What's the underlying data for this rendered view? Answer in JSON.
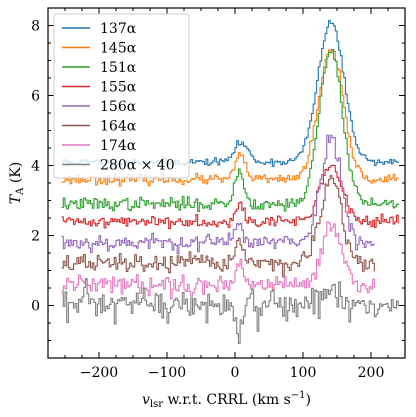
{
  "chart_data": {
    "type": "line",
    "title": "",
    "xlabel": "v_lsr w.r.t. CRRL (km s^-1)",
    "xlabel_parts": {
      "base": "v",
      "sub": "lsr",
      "rest": " w.r.t. CRRL (km s",
      "sup": "−1",
      "close": ")"
    },
    "ylabel": "T_A (K)",
    "ylabel_parts": {
      "base": "T",
      "sub": "A",
      "rest": " (K)"
    },
    "xlim": [
      -275,
      250
    ],
    "ylim": [
      -1.5,
      8.5
    ],
    "x_ticks": [
      -200,
      -100,
      0,
      100,
      200
    ],
    "x_tick_labels": [
      "−200",
      "−100",
      "0",
      "100",
      "200"
    ],
    "y_ticks": [
      0,
      2,
      4,
      6,
      8
    ],
    "y_tick_labels": [
      "0",
      "2",
      "4",
      "6",
      "8"
    ],
    "grid": false,
    "legend_position": "top-left",
    "x_range": [
      -255,
      240
    ],
    "series": [
      {
        "name": "137α",
        "color": "#1f77b4",
        "baseline": 4.1,
        "peak_v": 140,
        "peak_amp": 4.0,
        "peak_width": 19,
        "secondary_v": 8,
        "secondary_amp": 0.55,
        "secondary_width": 10,
        "noise": 0.05,
        "x_end": 240,
        "seed": 11
      },
      {
        "name": "145α",
        "color": "#ff7f0e",
        "baseline": 3.6,
        "peak_v": 140,
        "peak_amp": 3.7,
        "peak_width": 18,
        "secondary_v": 7,
        "secondary_amp": 0.65,
        "secondary_width": 8,
        "noise": 0.07,
        "x_end": 240,
        "seed": 23
      },
      {
        "name": "151α",
        "color": "#2ca02c",
        "baseline": 2.9,
        "peak_v": 140,
        "peak_amp": 4.4,
        "peak_width": 17,
        "secondary_v": 5,
        "secondary_amp": 0.9,
        "secondary_width": 7,
        "noise": 0.09,
        "x_end": 240,
        "seed": 37
      },
      {
        "name": "155α",
        "color": "#d62728",
        "baseline": 2.4,
        "peak_v": 140,
        "peak_amp": 1.6,
        "peak_width": 16,
        "secondary_v": 5,
        "secondary_amp": 0.5,
        "secondary_width": 6,
        "noise": 0.08,
        "x_end": 240,
        "seed": 41
      },
      {
        "name": "156α",
        "color": "#9467bd",
        "baseline": 1.8,
        "peak_v": 140,
        "peak_amp": 3.0,
        "peak_width": 15,
        "secondary_v": 5,
        "secondary_amp": 0.6,
        "secondary_width": 6,
        "noise": 0.12,
        "x_end": 205,
        "seed": 53
      },
      {
        "name": "164α",
        "color": "#8c564b",
        "baseline": 1.2,
        "peak_v": 140,
        "peak_amp": 2.4,
        "peak_width": 15,
        "secondary_v": 5,
        "secondary_amp": 0.7,
        "secondary_width": 6,
        "noise": 0.13,
        "x_end": 205,
        "seed": 67
      },
      {
        "name": "174α",
        "color": "#e377c2",
        "baseline": 0.6,
        "peak_v": 140,
        "peak_amp": 1.7,
        "peak_width": 14,
        "secondary_v": 5,
        "secondary_amp": 0.6,
        "secondary_width": 6,
        "noise": 0.13,
        "x_end": 205,
        "seed": 79
      },
      {
        "name": "280α × 40",
        "color": "#7f7f7f",
        "baseline": 0.0,
        "peak_v": 140,
        "peak_amp": 0.55,
        "peak_width": 12,
        "secondary_v": 5,
        "secondary_amp": -0.85,
        "secondary_width": 6,
        "noise": 0.25,
        "x_end": 240,
        "seed": 97
      }
    ]
  }
}
